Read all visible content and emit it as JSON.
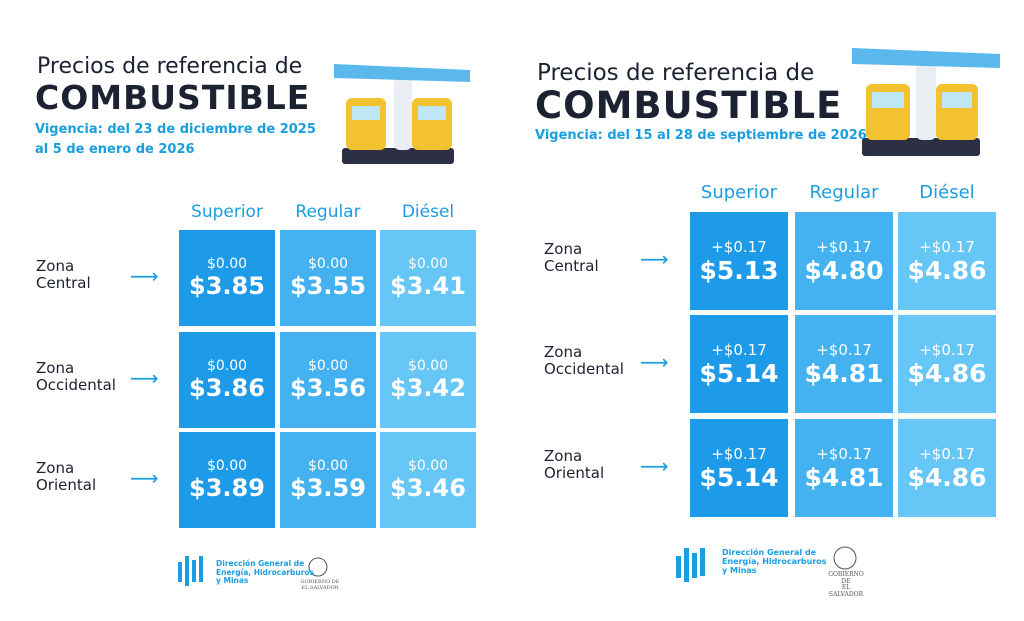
{
  "panels": [
    {
      "title_line1": "Precios de referencia de",
      "title_line2": "COMBUSTIBLE",
      "validity": [
        "Vigencia: del 23 de diciembre de 2025",
        "al 5 de enero de 2026"
      ],
      "columns": [
        "Superior",
        "Regular",
        "Diésel"
      ],
      "rows": [
        {
          "zone": "Zona\nCentral",
          "cells": [
            {
              "change": "$0.00",
              "price": "$3.85"
            },
            {
              "change": "$0.00",
              "price": "$3.55"
            },
            {
              "change": "$0.00",
              "price": "$3.41"
            }
          ]
        },
        {
          "zone": "Zona\nOccidental",
          "cells": [
            {
              "change": "$0.00",
              "price": "$3.86"
            },
            {
              "change": "$0.00",
              "price": "$3.56"
            },
            {
              "change": "$0.00",
              "price": "$3.42"
            }
          ]
        },
        {
          "zone": "Zona\nOriental",
          "cells": [
            {
              "change": "$0.00",
              "price": "$3.89"
            },
            {
              "change": "$0.00",
              "price": "$3.59"
            },
            {
              "change": "$0.00",
              "price": "$3.46"
            }
          ]
        }
      ],
      "footer": "Dirección General de\nEnergía, Hidrocarburos\ny Minas",
      "government": "GOBIERNO DE\nEL SALVADOR"
    },
    {
      "title_line1": "Precios de referencia de",
      "title_line2": "COMBUSTIBLE",
      "validity": [
        "Vigencia: del 15 al 28 de septiembre de 2026"
      ],
      "columns": [
        "Superior",
        "Regular",
        "Diésel"
      ],
      "rows": [
        {
          "zone": "Zona\nCentral",
          "cells": [
            {
              "change": "+$0.17",
              "price": "$5.13"
            },
            {
              "change": "+$0.17",
              "price": "$4.80"
            },
            {
              "change": "+$0.17",
              "price": "$4.86"
            }
          ]
        },
        {
          "zone": "Zona\nOccidental",
          "cells": [
            {
              "change": "+$0.17",
              "price": "$5.14"
            },
            {
              "change": "+$0.17",
              "price": "$4.81"
            },
            {
              "change": "+$0.17",
              "price": "$4.86"
            }
          ]
        },
        {
          "zone": "Zona\nOriental",
          "cells": [
            {
              "change": "+$0.17",
              "price": "$5.14"
            },
            {
              "change": "+$0.17",
              "price": "$4.81"
            },
            {
              "change": "+$0.17",
              "price": "$4.86"
            }
          ]
        }
      ],
      "footer": "Dirección General de\nEnergía, Hidrocarburos\ny Minas",
      "government": "GOBIERNO DE\nEL SALVADOR"
    }
  ]
}
